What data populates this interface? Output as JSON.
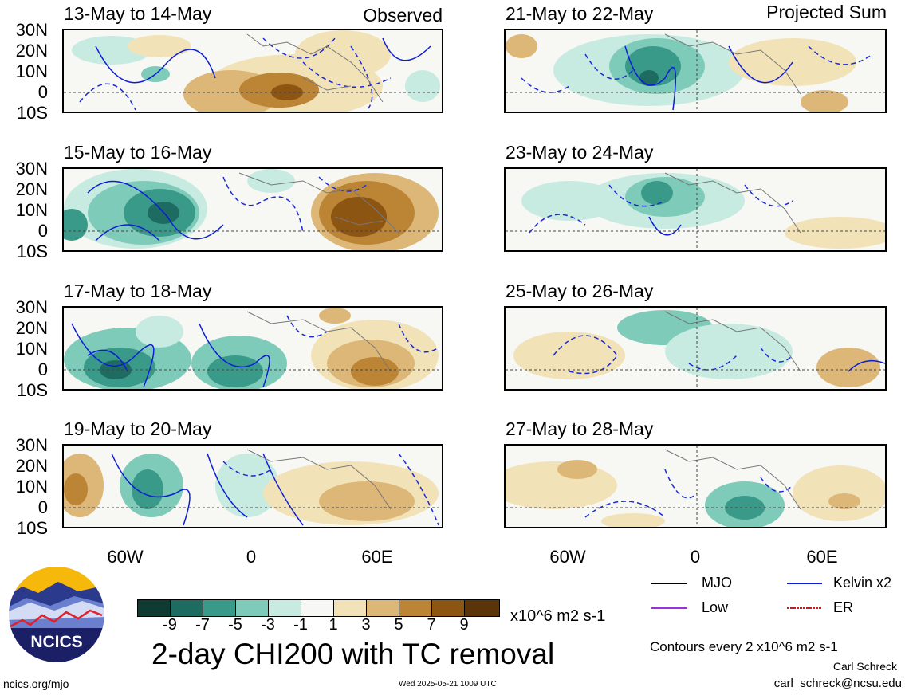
{
  "headers": {
    "observed": "Observed",
    "projected": "Projected Sum"
  },
  "panels": [
    {
      "id": "p1",
      "date_range": "13-May to 14-May",
      "column": "observed"
    },
    {
      "id": "p2",
      "date_range": "15-May to 16-May",
      "column": "observed"
    },
    {
      "id": "p3",
      "date_range": "17-May to 18-May",
      "column": "observed"
    },
    {
      "id": "p4",
      "date_range": "19-May to 20-May",
      "column": "observed"
    },
    {
      "id": "p5",
      "date_range": "21-May to 22-May",
      "column": "projected"
    },
    {
      "id": "p6",
      "date_range": "23-May to 24-May",
      "column": "projected"
    },
    {
      "id": "p7",
      "date_range": "25-May to 26-May",
      "column": "projected"
    },
    {
      "id": "p8",
      "date_range": "27-May to 28-May",
      "column": "projected"
    }
  ],
  "lat_labels": [
    "30N",
    "20N",
    "10N",
    "0",
    "10S"
  ],
  "lon_labels": [
    "60W",
    "0",
    "60E"
  ],
  "colorbar": {
    "ticks": [
      "-9",
      "-7",
      "-5",
      "-3",
      "-1",
      "1",
      "3",
      "5",
      "7",
      "9"
    ],
    "units": "x10^6 m2 s-1",
    "colors": [
      "#0f3b33",
      "#1e6b61",
      "#3a9a8a",
      "#7fcbb9",
      "#c7ebe1",
      "#f7f7f4",
      "#f2e2b8",
      "#dcb777",
      "#bc8535",
      "#8c5512",
      "#5b3507"
    ]
  },
  "title": "2-day CHI200 with TC removal",
  "legend": [
    {
      "label": "MJO",
      "color": "#000000"
    },
    {
      "label": "Kelvin x2",
      "color": "#0b1ed6"
    },
    {
      "label": "Low",
      "color": "#9b30e0"
    },
    {
      "label": "ER",
      "color": "#e01010"
    }
  ],
  "contour_note": "Contours every 2 x10^6 m2 s-1",
  "author": "Carl Schreck",
  "email": "carl_schreck@ncsu.edu",
  "site": "ncics.org/mjo",
  "timestamp": "Wed 2025-05-21 1009 UTC",
  "logo_text": "NCICS"
}
